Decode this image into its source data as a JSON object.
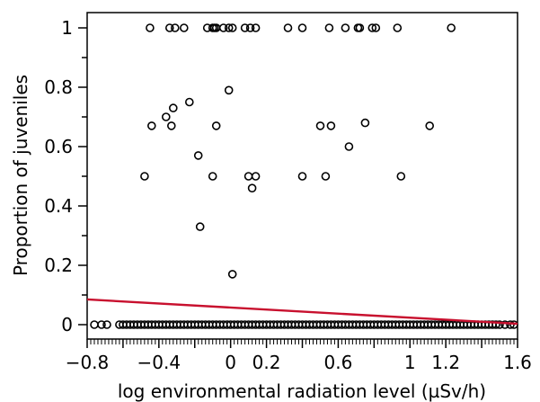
{
  "chart_data": {
    "type": "scatter",
    "title": "",
    "xlabel": "log environmental radiation level (µSv/h)",
    "ylabel": "Proportion of juveniles",
    "xlim": [
      -0.8,
      1.6
    ],
    "ylim": [
      0,
      1
    ],
    "x_tick_labels": [
      "−0.8",
      "−0.4",
      "0",
      "0.2",
      "0.6",
      "1",
      "1.2",
      "1.6"
    ],
    "x_tick_values": [
      -0.8,
      -0.4,
      0,
      0.2,
      0.6,
      1,
      1.2,
      1.6
    ],
    "y_tick_labels": [
      "0",
      "0.2",
      "0.4",
      "0.6",
      "0.8",
      "1"
    ],
    "y_tick_values": [
      0,
      0.2,
      0.4,
      0.6,
      0.8,
      1
    ],
    "grid": false,
    "fit_line": {
      "color": "#c8102e",
      "x": [
        -0.8,
        1.6
      ],
      "y": [
        0.085,
        0.003
      ]
    },
    "series": [
      {
        "color": "#000000",
        "points": [
          [
            -0.45,
            1
          ],
          [
            -0.34,
            1
          ],
          [
            -0.31,
            1
          ],
          [
            -0.26,
            1
          ],
          [
            -0.13,
            1
          ],
          [
            -0.1,
            1
          ],
          [
            -0.09,
            1
          ],
          [
            -0.08,
            1
          ],
          [
            -0.04,
            1
          ],
          [
            -0.01,
            1
          ],
          [
            0.01,
            1
          ],
          [
            0.08,
            1
          ],
          [
            0.11,
            1
          ],
          [
            0.14,
            1
          ],
          [
            0.32,
            1
          ],
          [
            0.4,
            1
          ],
          [
            0.55,
            1
          ],
          [
            0.64,
            1
          ],
          [
            0.71,
            1
          ],
          [
            0.72,
            1
          ],
          [
            0.79,
            1
          ],
          [
            0.81,
            1
          ],
          [
            0.93,
            1
          ],
          [
            1.23,
            1
          ],
          [
            -0.01,
            0.79
          ],
          [
            -0.23,
            0.75
          ],
          [
            -0.32,
            0.73
          ],
          [
            -0.36,
            0.7
          ],
          [
            -0.44,
            0.67
          ],
          [
            -0.33,
            0.67
          ],
          [
            -0.08,
            0.67
          ],
          [
            0.5,
            0.67
          ],
          [
            0.56,
            0.67
          ],
          [
            1.11,
            0.67
          ],
          [
            0.75,
            0.68
          ],
          [
            0.66,
            0.6
          ],
          [
            -0.18,
            0.57
          ],
          [
            -0.48,
            0.5
          ],
          [
            -0.1,
            0.5
          ],
          [
            0.1,
            0.5
          ],
          [
            0.14,
            0.5
          ],
          [
            0.4,
            0.5
          ],
          [
            0.53,
            0.5
          ],
          [
            0.95,
            0.5
          ],
          [
            0.12,
            0.46
          ],
          [
            -0.17,
            0.33
          ],
          [
            0.01,
            0.17
          ],
          [
            -0.76,
            0
          ],
          [
            -0.72,
            0
          ],
          [
            -0.69,
            0
          ],
          [
            -0.62,
            0
          ],
          [
            -0.6,
            0
          ],
          [
            -0.58,
            0
          ],
          [
            -0.56,
            0
          ],
          [
            -0.54,
            0
          ],
          [
            -0.52,
            0
          ],
          [
            -0.5,
            0
          ],
          [
            -0.48,
            0
          ],
          [
            -0.46,
            0
          ],
          [
            -0.44,
            0
          ],
          [
            -0.42,
            0
          ],
          [
            -0.4,
            0
          ],
          [
            -0.38,
            0
          ],
          [
            -0.36,
            0
          ],
          [
            -0.34,
            0
          ],
          [
            -0.32,
            0
          ],
          [
            -0.3,
            0
          ],
          [
            -0.28,
            0
          ],
          [
            -0.26,
            0
          ],
          [
            -0.24,
            0
          ],
          [
            -0.22,
            0
          ],
          [
            -0.2,
            0
          ],
          [
            -0.18,
            0
          ],
          [
            -0.16,
            0
          ],
          [
            -0.14,
            0
          ],
          [
            -0.12,
            0
          ],
          [
            -0.1,
            0
          ],
          [
            -0.08,
            0
          ],
          [
            -0.06,
            0
          ],
          [
            -0.04,
            0
          ],
          [
            -0.02,
            0
          ],
          [
            0.0,
            0
          ],
          [
            0.02,
            0
          ],
          [
            0.04,
            0
          ],
          [
            0.06,
            0
          ],
          [
            0.08,
            0
          ],
          [
            0.1,
            0
          ],
          [
            0.12,
            0
          ],
          [
            0.14,
            0
          ],
          [
            0.16,
            0
          ],
          [
            0.18,
            0
          ],
          [
            0.2,
            0
          ],
          [
            0.22,
            0
          ],
          [
            0.24,
            0
          ],
          [
            0.26,
            0
          ],
          [
            0.28,
            0
          ],
          [
            0.3,
            0
          ],
          [
            0.32,
            0
          ],
          [
            0.34,
            0
          ],
          [
            0.36,
            0
          ],
          [
            0.38,
            0
          ],
          [
            0.4,
            0
          ],
          [
            0.42,
            0
          ],
          [
            0.44,
            0
          ],
          [
            0.46,
            0
          ],
          [
            0.48,
            0
          ],
          [
            0.5,
            0
          ],
          [
            0.52,
            0
          ],
          [
            0.54,
            0
          ],
          [
            0.56,
            0
          ],
          [
            0.58,
            0
          ],
          [
            0.6,
            0
          ],
          [
            0.62,
            0
          ],
          [
            0.64,
            0
          ],
          [
            0.66,
            0
          ],
          [
            0.68,
            0
          ],
          [
            0.7,
            0
          ],
          [
            0.72,
            0
          ],
          [
            0.74,
            0
          ],
          [
            0.76,
            0
          ],
          [
            0.78,
            0
          ],
          [
            0.8,
            0
          ],
          [
            0.82,
            0
          ],
          [
            0.84,
            0
          ],
          [
            0.86,
            0
          ],
          [
            0.88,
            0
          ],
          [
            0.9,
            0
          ],
          [
            0.92,
            0
          ],
          [
            0.94,
            0
          ],
          [
            0.96,
            0
          ],
          [
            0.98,
            0
          ],
          [
            1.0,
            0
          ],
          [
            1.02,
            0
          ],
          [
            1.04,
            0
          ],
          [
            1.06,
            0
          ],
          [
            1.08,
            0
          ],
          [
            1.1,
            0
          ],
          [
            1.12,
            0
          ],
          [
            1.14,
            0
          ],
          [
            1.16,
            0
          ],
          [
            1.18,
            0
          ],
          [
            1.2,
            0
          ],
          [
            1.22,
            0
          ],
          [
            1.24,
            0
          ],
          [
            1.26,
            0
          ],
          [
            1.28,
            0
          ],
          [
            1.3,
            0
          ],
          [
            1.32,
            0
          ],
          [
            1.34,
            0
          ],
          [
            1.36,
            0
          ],
          [
            1.38,
            0
          ],
          [
            1.4,
            0
          ],
          [
            1.42,
            0
          ],
          [
            1.44,
            0
          ],
          [
            1.46,
            0
          ],
          [
            1.48,
            0
          ],
          [
            1.5,
            0
          ],
          [
            1.53,
            0
          ],
          [
            1.56,
            0
          ],
          [
            1.58,
            0
          ]
        ]
      }
    ]
  }
}
